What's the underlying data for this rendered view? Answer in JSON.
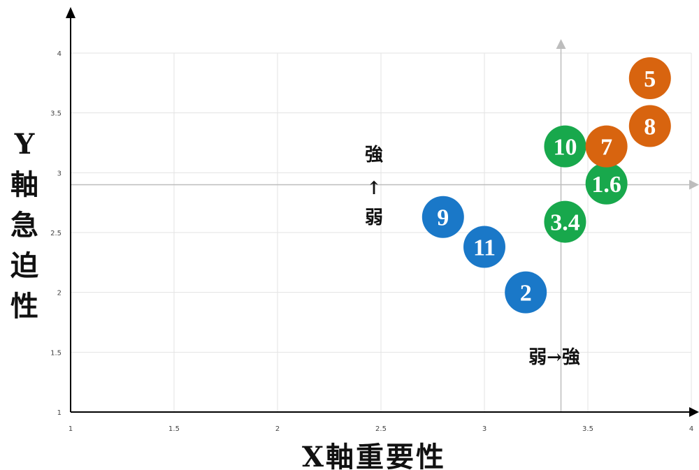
{
  "chart_data": {
    "type": "scatter",
    "xlabel": "X軸重要性",
    "ylabel": "Y軸急迫性",
    "xlim": [
      1,
      4
    ],
    "ylim": [
      1,
      4
    ],
    "x_ticks": [
      "1",
      "1.5",
      "2",
      "2.5",
      "3",
      "3.5",
      "4"
    ],
    "y_ticks": [
      "1",
      "1.5",
      "2",
      "2.5",
      "3",
      "3.5",
      "4"
    ],
    "grid": true,
    "quadrant_lines": {
      "x": 3.37,
      "y": 2.9
    },
    "annotations": {
      "vertical": [
        "強",
        "↑",
        "弱"
      ],
      "horizontal": "弱→強"
    },
    "groups": [
      {
        "color": "#1a78c8",
        "points": [
          {
            "label": "9",
            "x": 2.8,
            "y": 2.63
          },
          {
            "label": "11",
            "x": 3.0,
            "y": 2.38
          },
          {
            "label": "2",
            "x": 3.2,
            "y": 2.0
          }
        ]
      },
      {
        "color": "#18a84c",
        "points": [
          {
            "label": "10",
            "x": 3.39,
            "y": 3.22
          },
          {
            "label": "1.6",
            "x": 3.59,
            "y": 2.91
          },
          {
            "label": "3.4",
            "x": 3.39,
            "y": 2.59
          }
        ]
      },
      {
        "color": "#d8640f",
        "points": [
          {
            "label": "5",
            "x": 3.8,
            "y": 3.79
          },
          {
            "label": "8",
            "x": 3.8,
            "y": 3.39
          },
          {
            "label": "7",
            "x": 3.59,
            "y": 3.22
          }
        ]
      }
    ]
  }
}
